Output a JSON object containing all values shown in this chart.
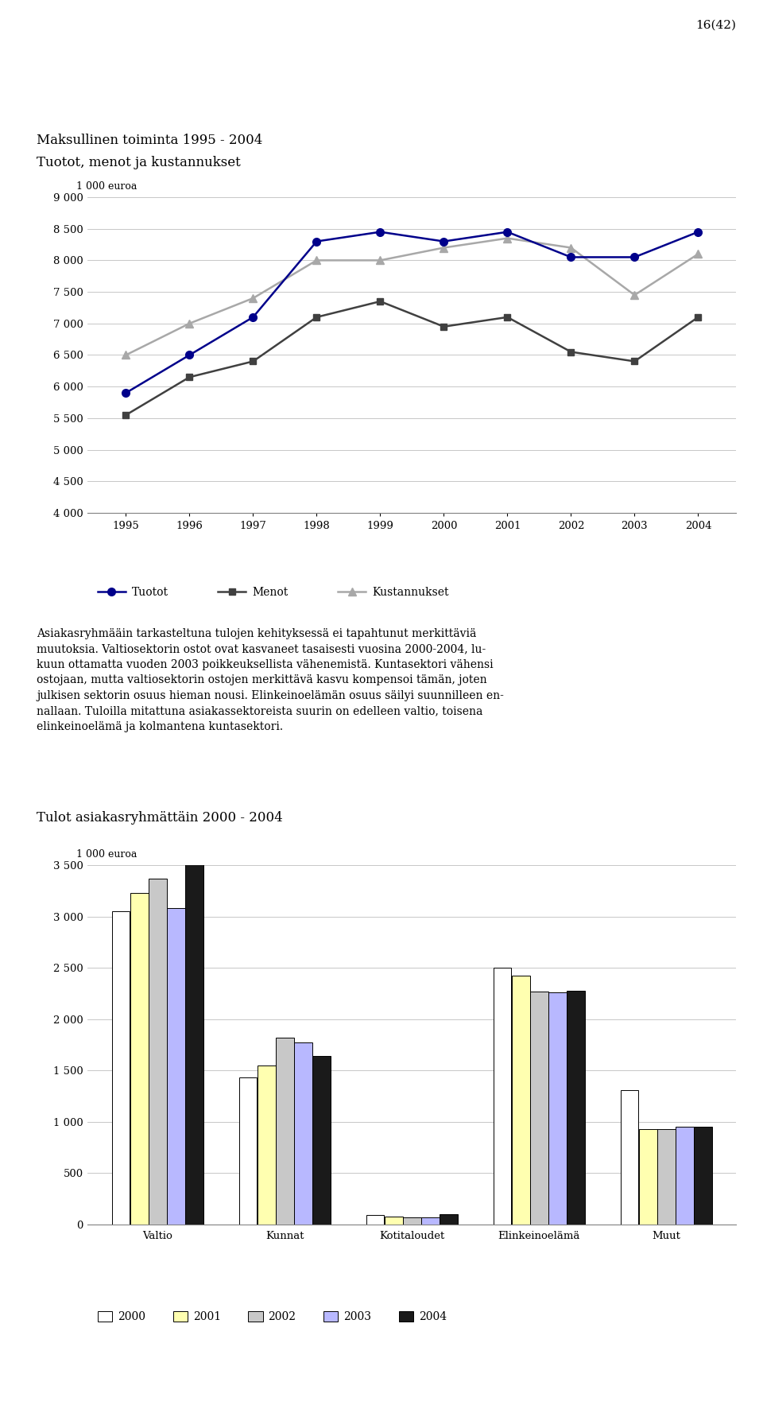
{
  "page_label": "16(42)",
  "chart1_title1": "Maksullinen toiminta 1995 - 2004",
  "chart1_title2": "Tuotot, menot ja kustannukset",
  "chart1_ylabel": "1 000 euroa",
  "chart1_years": [
    1995,
    1996,
    1997,
    1998,
    1999,
    2000,
    2001,
    2002,
    2003,
    2004
  ],
  "chart1_tuotot": [
    5900,
    6500,
    7100,
    8300,
    8450,
    8300,
    8450,
    8050,
    8050,
    8450
  ],
  "chart1_menot": [
    5550,
    6150,
    6400,
    7100,
    7350,
    6950,
    7100,
    6550,
    6400,
    7100
  ],
  "chart1_kustannukset": [
    6500,
    7000,
    7400,
    8000,
    8000,
    8200,
    8350,
    8200,
    7450,
    8100
  ],
  "chart1_ylim": [
    4000,
    9000
  ],
  "chart1_yticks": [
    4000,
    4500,
    5000,
    5500,
    6000,
    6500,
    7000,
    7500,
    8000,
    8500,
    9000
  ],
  "chart1_tuotot_color": "#00008B",
  "chart1_menot_color": "#404040",
  "chart1_kustannukset_color": "#A8A8A8",
  "chart2_title": "Tulot asiakasryhmättäin 2000 - 2004",
  "chart2_ylabel": "1 000 euroa",
  "chart2_categories": [
    "Valtio",
    "Kunnat",
    "Kotitaloudet",
    "Elinkeinoelämä",
    "Muut"
  ],
  "chart2_years": [
    "2000",
    "2001",
    "2002",
    "2003",
    "2004"
  ],
  "chart2_valtio": [
    3050,
    3230,
    3370,
    3080,
    3520
  ],
  "chart2_kunnat": [
    1430,
    1550,
    1820,
    1770,
    1640
  ],
  "chart2_kotitaloudet": [
    90,
    80,
    70,
    70,
    100
  ],
  "chart2_elinkeino": [
    2500,
    2420,
    2270,
    2260,
    2280
  ],
  "chart2_muut": [
    1310,
    930,
    930,
    950,
    950
  ],
  "chart2_ylim": [
    0,
    3500
  ],
  "chart2_yticks": [
    0,
    500,
    1000,
    1500,
    2000,
    2500,
    3000,
    3500
  ],
  "chart2_bar_colors": [
    "#FFFFFF",
    "#FFFFB0",
    "#C8C8C8",
    "#B8B8FF",
    "#1A1A1A"
  ],
  "body_text": [
    "Asiakasryhmääin tarkasteltuna tulojen kehityksessä ei tapahtunut merkittäviä",
    "muutoksia. Valtiosektorin ostot ovat kasvaneet tasaisesti vuosina 2000-2004, lu-",
    "kuun ottamatta vuoden 2003 poikkeuksellista vähenemistä. Kuntasektori vähensi",
    "ostojaan, mutta valtiosektorin ostojen merkittävä kasvu kompensoi tämän, joten",
    "julkisen sektorin osuus hieman nousi. Elinkeinoelämän osuus säilyi suunnilleen en-",
    "nallaan. Tuloilla mitattuna asiakassektoreista suurin on edelleen valtio, toisena",
    "elinkeinoelämä ja kolmantena kuntasektori."
  ]
}
